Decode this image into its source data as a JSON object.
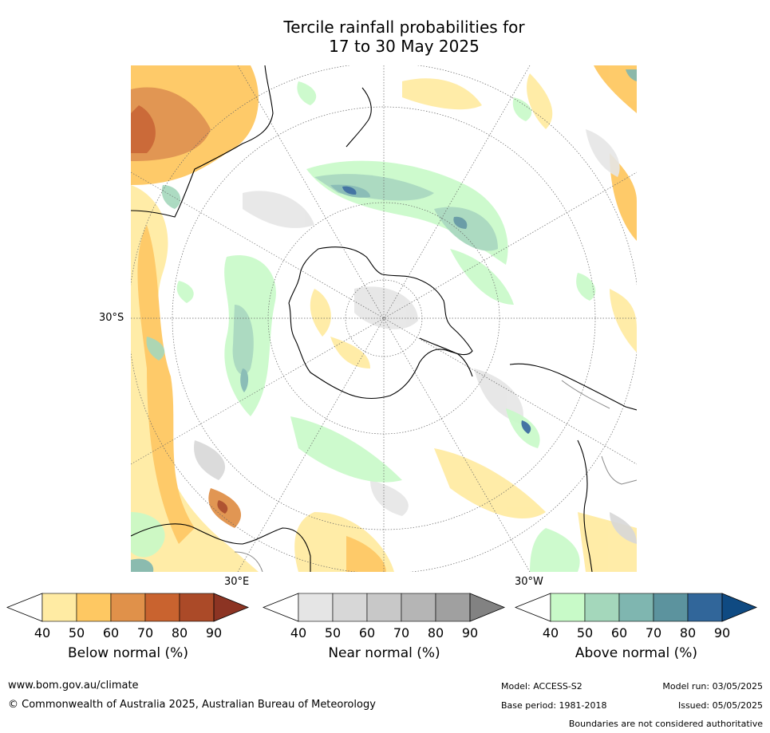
{
  "title": {
    "line1": "Tercile rainfall probabilities for",
    "line2": "17 to 30 May 2025"
  },
  "map": {
    "projection": "south-polar stereographic",
    "lat_label": "30°S",
    "lon_labels": [
      "30°E",
      "30°W"
    ]
  },
  "colorbars": [
    {
      "title": "Below normal (%)",
      "ticks": [
        "40",
        "50",
        "60",
        "70",
        "80",
        "90"
      ],
      "colors": [
        "#ffffff",
        "#ffeba3",
        "#fec862",
        "#e0914a",
        "#c9632f",
        "#ab4a28",
        "#8c3423"
      ]
    },
    {
      "title": "Near normal (%)",
      "ticks": [
        "40",
        "50",
        "60",
        "70",
        "80",
        "90"
      ],
      "colors": [
        "#ffffff",
        "#e5e5e5",
        "#d7d7d7",
        "#c8c8c8",
        "#b5b5b5",
        "#a0a0a0",
        "#828282"
      ]
    },
    {
      "title": "Above normal (%)",
      "ticks": [
        "40",
        "50",
        "60",
        "70",
        "80",
        "90"
      ],
      "colors": [
        "#ffffff",
        "#c8fac8",
        "#a4d7bb",
        "#7fb6b0",
        "#5c939e",
        "#31669a",
        "#0f4a82"
      ]
    }
  ],
  "footer": {
    "url": "www.bom.gov.au/climate",
    "copyright": "© Commonwealth of Australia 2025, Australian Bureau of Meteorology",
    "model": "Model: ACCESS-S2",
    "base_period": "Base period: 1981-2018",
    "model_run": "Model run: 03/05/2025",
    "issued": "Issued: 05/05/2025",
    "disclaimer": "Boundaries are not considered authoritative"
  }
}
